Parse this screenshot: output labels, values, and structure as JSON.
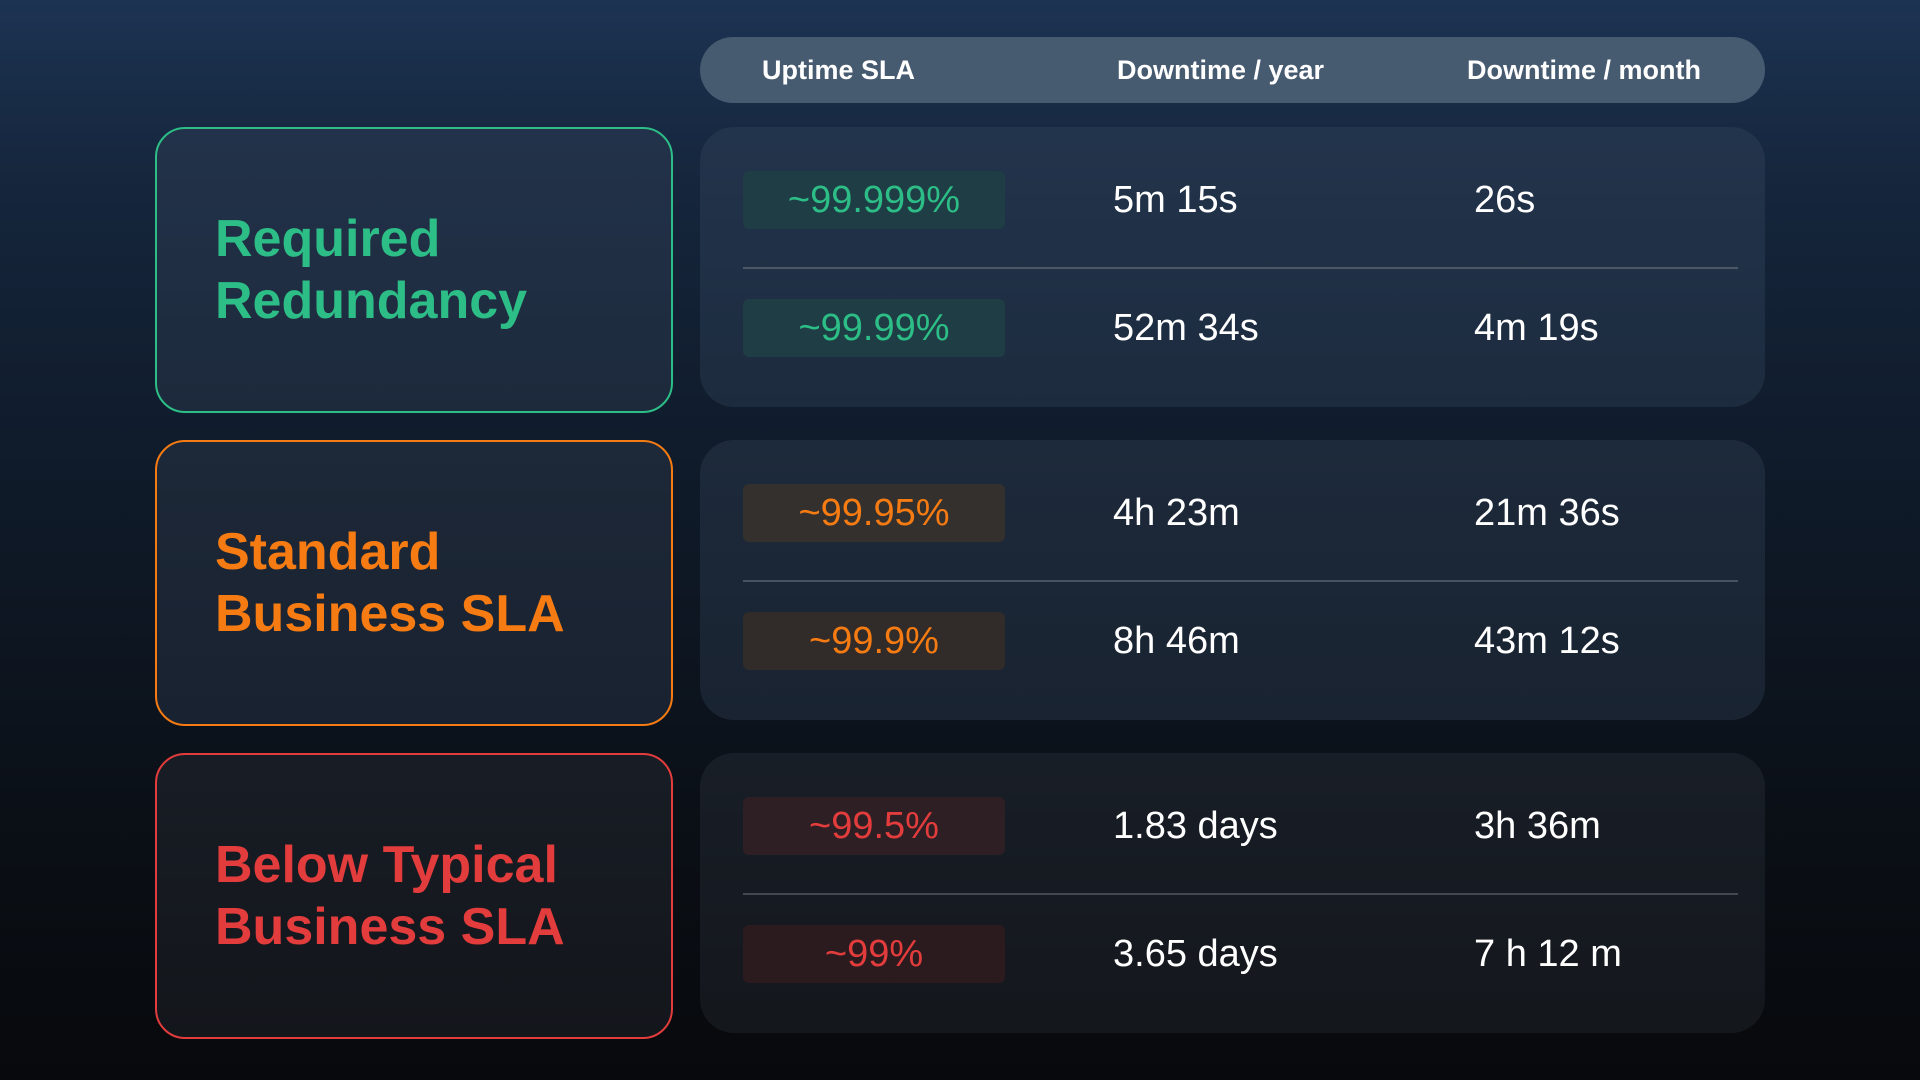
{
  "header": {
    "uptime_sla": "Uptime SLA",
    "downtime_year": "Downtime / year",
    "downtime_month": "Downtime / month"
  },
  "groups": [
    {
      "title_line1": "Required",
      "title_line2": "Redundancy",
      "accent": "#2dbd86",
      "rows": [
        {
          "sla": "~99.999%",
          "year": "5m 15s",
          "month": "26s"
        },
        {
          "sla": "~99.99%",
          "year": "52m 34s",
          "month": "4m 19s"
        }
      ]
    },
    {
      "title_line1": "Standard",
      "title_line2": "Business SLA",
      "accent": "#f57b12",
      "rows": [
        {
          "sla": "~99.95%",
          "year": "4h 23m",
          "month": "21m 36s"
        },
        {
          "sla": "~99.9%",
          "year": "8h 46m",
          "month": "43m 12s"
        }
      ]
    },
    {
      "title_line1": "Below Typical",
      "title_line2": "Business SLA",
      "accent": "#e23c3c",
      "rows": [
        {
          "sla": "~99.5%",
          "year": "1.83 days",
          "month": "3h 36m"
        },
        {
          "sla": "~99%",
          "year": "3.65 days",
          "month": "7 h 12 m"
        }
      ]
    }
  ]
}
